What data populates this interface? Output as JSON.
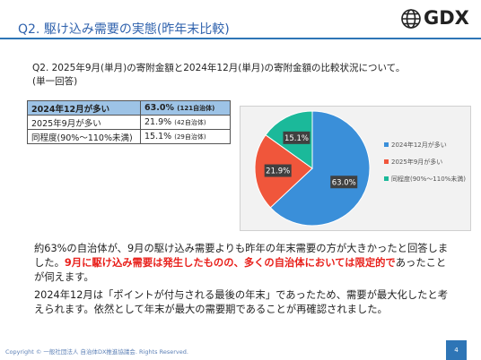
{
  "header": {
    "title": "Q2. 駆け込み需要の実態(昨年末比較)",
    "logo": "GDX"
  },
  "question": {
    "text": "Q2. 2025年9月(単月)の寄附金額と2024年12月(単月)の寄附金額の比較状況について。",
    "note": "(単一回答)"
  },
  "table": {
    "rows": [
      {
        "label": "2024年12月が多い",
        "percent": "63.0%",
        "count": "(121自治体)"
      },
      {
        "label": "2025年9月が多い",
        "percent": "21.9%",
        "count": "(42自治体)"
      },
      {
        "label": "同程度(90%～110%未満)",
        "percent": "15.1%",
        "count": "(29自治体)"
      }
    ]
  },
  "chart_data": {
    "type": "pie",
    "categories": [
      "2024年12月が多い",
      "2025年9月が多い",
      "同程度(90%～110%未満)"
    ],
    "values": [
      63.0,
      21.9,
      15.1
    ],
    "value_labels": [
      "63.0%",
      "21.9%",
      "15.1%"
    ],
    "colors": [
      "#3a8fd9",
      "#f0563b",
      "#1bb99a"
    ]
  },
  "body": {
    "paragraph1": [
      "約63%の自治体が、9月の駆け込み需要よりも昨年の年末需要の方が大きかったと回答しました。",
      "9月に駆け込み需要は発生したものの、多くの自治体においては限定的で",
      "あったことが伺えます。"
    ],
    "paragraph2": "2024年12月は「ポイントが付与される最後の年末」であったため、需要が最大化したと考えられます。依然として年末が最大の需要期であることが再確認されました。"
  },
  "footer": {
    "copyright": "Copyright © 一般社団法人 自治体DX推進協議会. Rights Reserved.",
    "page": "4"
  }
}
